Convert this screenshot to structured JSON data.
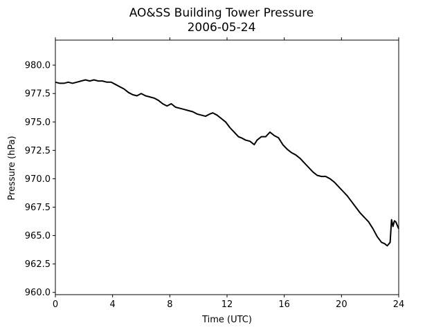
{
  "chart_data": {
    "type": "line",
    "title": "AO&SS Building Tower Pressure",
    "subtitle": "2006-05-24",
    "xlabel": "Time (UTC)",
    "ylabel": "Pressure (hPa)",
    "xlim": [
      0,
      24
    ],
    "ylim": [
      959.8,
      982.2
    ],
    "xticks": [
      0,
      4,
      8,
      12,
      16,
      20,
      24
    ],
    "yticks": [
      960.0,
      962.5,
      965.0,
      967.5,
      970.0,
      972.5,
      975.0,
      977.5,
      980.0
    ],
    "ytick_labels": [
      "960.0",
      "962.5",
      "965.0",
      "967.5",
      "970.0",
      "972.5",
      "975.0",
      "977.5",
      "980.0"
    ],
    "grid": false,
    "series": [
      {
        "color": "#000000",
        "x": [
          0.0,
          0.3,
          0.6,
          0.9,
          1.2,
          1.5,
          1.8,
          2.1,
          2.4,
          2.7,
          3.0,
          3.3,
          3.6,
          3.9,
          4.2,
          4.5,
          4.8,
          5.1,
          5.4,
          5.7,
          6.0,
          6.3,
          6.6,
          6.9,
          7.2,
          7.5,
          7.8,
          8.1,
          8.4,
          8.7,
          9.0,
          9.3,
          9.6,
          9.9,
          10.2,
          10.5,
          10.8,
          11.0,
          11.3,
          11.6,
          11.9,
          12.2,
          12.5,
          12.8,
          13.0,
          13.3,
          13.6,
          13.9,
          14.1,
          14.4,
          14.7,
          15.0,
          15.3,
          15.6,
          15.9,
          16.2,
          16.5,
          16.8,
          17.1,
          17.4,
          17.7,
          18.0,
          18.3,
          18.6,
          18.9,
          19.2,
          19.5,
          19.8,
          20.1,
          20.4,
          20.7,
          21.0,
          21.3,
          21.6,
          21.9,
          22.2,
          22.5,
          22.8,
          23.0,
          23.2,
          23.4,
          23.5,
          23.6,
          23.7,
          23.8,
          23.9,
          24.0
        ],
        "values": [
          978.5,
          978.4,
          978.4,
          978.5,
          978.4,
          978.5,
          978.6,
          978.7,
          978.6,
          978.7,
          978.6,
          978.6,
          978.5,
          978.5,
          978.3,
          978.1,
          977.9,
          977.6,
          977.4,
          977.3,
          977.5,
          977.3,
          977.2,
          977.1,
          976.9,
          976.6,
          976.4,
          976.6,
          976.3,
          976.2,
          976.1,
          976.0,
          975.9,
          975.7,
          975.6,
          975.5,
          975.7,
          975.8,
          975.6,
          975.3,
          975.0,
          974.5,
          974.1,
          973.7,
          973.6,
          973.4,
          973.3,
          973.0,
          973.4,
          973.7,
          973.7,
          974.1,
          973.8,
          973.6,
          973.0,
          972.6,
          972.3,
          972.1,
          971.8,
          971.4,
          971.0,
          970.6,
          970.3,
          970.2,
          970.2,
          970.0,
          969.7,
          969.3,
          968.9,
          968.5,
          968.0,
          967.5,
          967.0,
          966.6,
          966.2,
          965.6,
          964.9,
          964.4,
          964.3,
          964.1,
          964.4,
          966.4,
          965.8,
          966.3,
          966.2,
          965.9,
          965.6
        ]
      }
    ]
  }
}
